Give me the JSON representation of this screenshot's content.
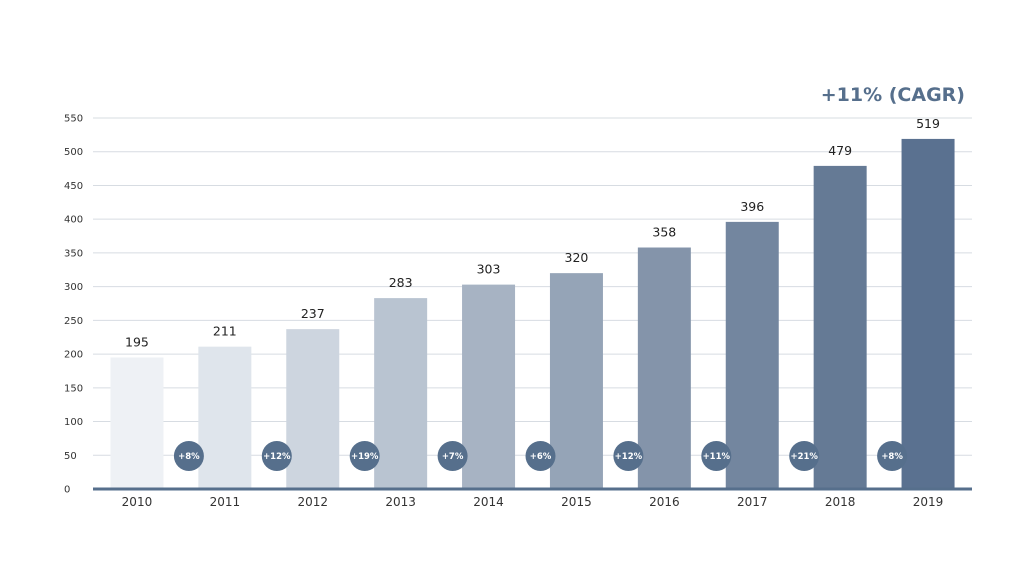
{
  "annotation": "+11% (CAGR)",
  "chart_data": {
    "type": "bar",
    "categories": [
      "2010",
      "2011",
      "2012",
      "2013",
      "2014",
      "2015",
      "2016",
      "2017",
      "2018",
      "2019"
    ],
    "values": [
      195,
      211,
      237,
      283,
      303,
      320,
      358,
      396,
      479,
      519
    ],
    "growth_labels": [
      "",
      "+8%",
      "+12%",
      "+19%",
      "+7%",
      "+6%",
      "+12%",
      "+11%",
      "+21%",
      "+8%"
    ],
    "ylim": [
      0,
      550
    ],
    "yticks": [
      0,
      50,
      100,
      150,
      200,
      250,
      300,
      350,
      400,
      450,
      500,
      550
    ],
    "grid": true,
    "colors": {
      "bars": [
        "#eef1f5",
        "#dfe5ec",
        "#cdd5df",
        "#b9c4d1",
        "#a7b3c3",
        "#95a4b7",
        "#8494aa",
        "#73869f",
        "#657a95",
        "#5a7190"
      ],
      "growth_circle": "#566f8c",
      "axis": "#566f8c",
      "grid": "#d7dce2"
    }
  }
}
